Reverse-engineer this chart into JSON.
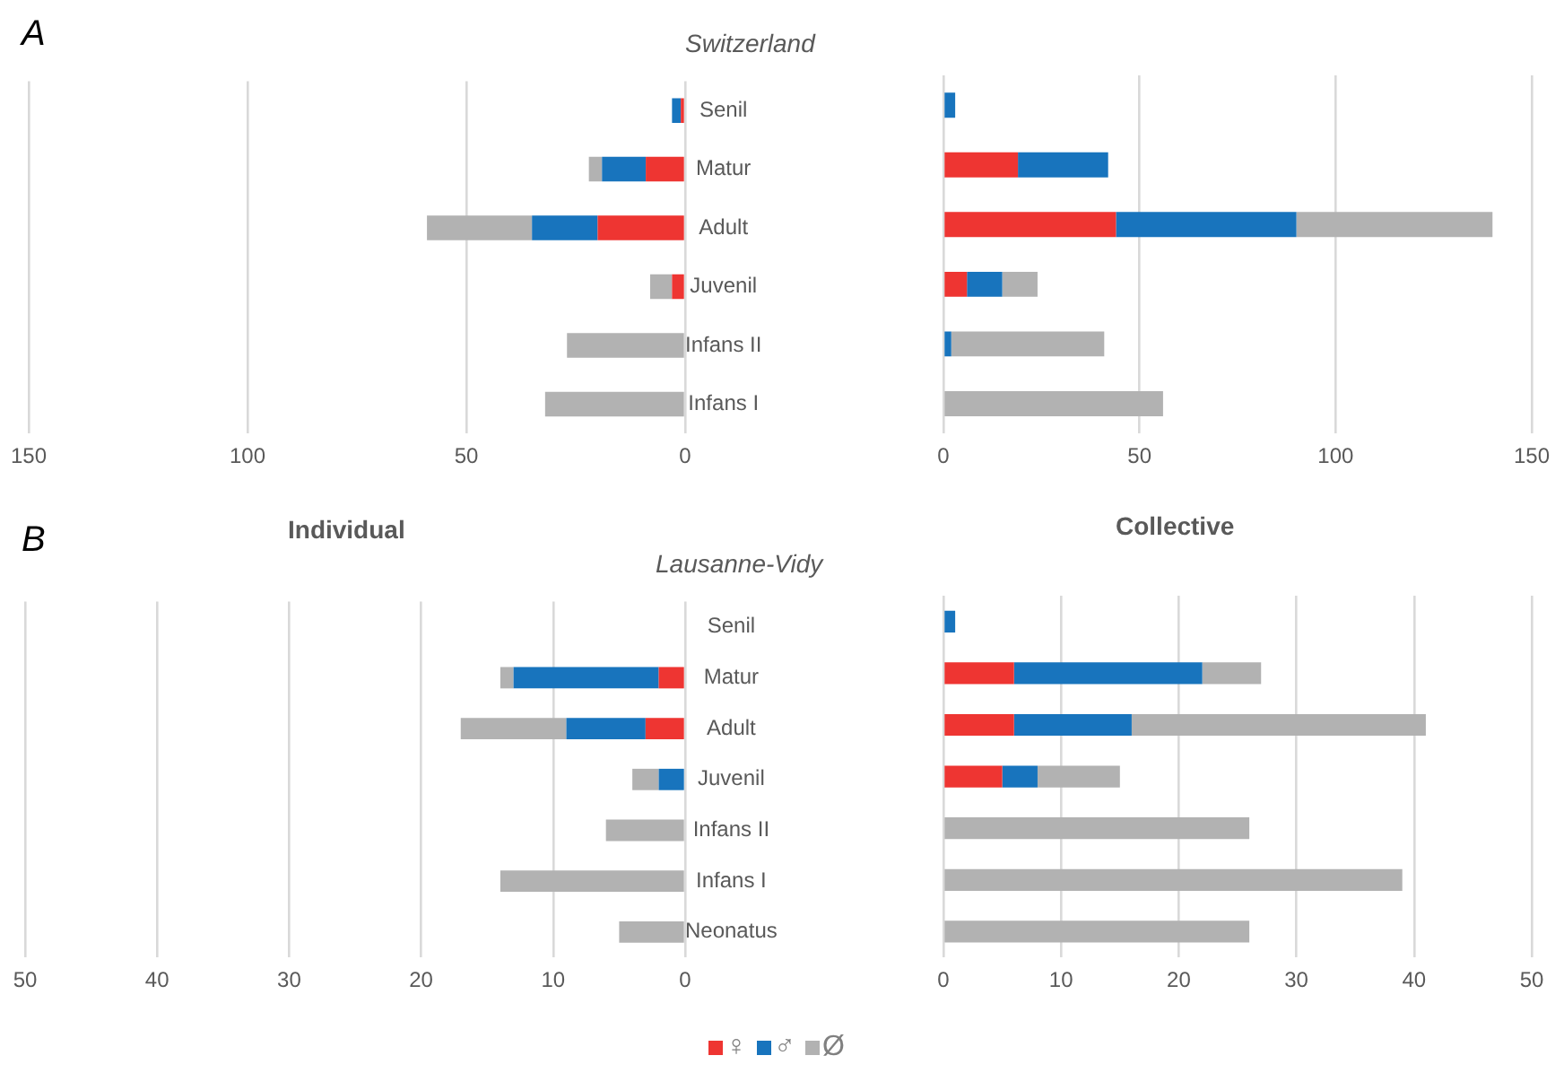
{
  "chart_data": [
    {
      "type": "bar",
      "orientation": "horizontal",
      "stacked": true,
      "title": "Switzerland",
      "annotations": [
        "A"
      ],
      "categories": [
        "Senil",
        "Matur",
        "Adult",
        "Juvenil",
        "Infans II",
        "Infans I"
      ],
      "xlim": [
        150,
        0
      ],
      "xticks": [
        150,
        100,
        50,
        0
      ],
      "grid": "x",
      "series": [
        {
          "color": "#ee3532",
          "values": [
            1,
            9,
            20,
            3,
            null,
            null
          ]
        },
        {
          "color": "#1874bd",
          "values": [
            2,
            10,
            15,
            null,
            null,
            null
          ]
        },
        {
          "color": "#b2b2b2",
          "values": [
            null,
            3,
            24,
            5,
            27,
            32
          ]
        }
      ]
    },
    {
      "type": "bar",
      "orientation": "horizontal",
      "stacked": true,
      "tick_labels": "x",
      "categories": [
        null,
        null,
        null,
        null,
        null,
        null
      ],
      "xlim": [
        0,
        150
      ],
      "xticks": [
        0,
        50,
        100,
        150
      ],
      "grid": "x",
      "series": [
        {
          "color": "#ee3532",
          "values": [
            null,
            19,
            44,
            6,
            null,
            null
          ]
        },
        {
          "color": "#1874bd",
          "values": [
            3,
            23,
            46,
            9,
            2,
            null
          ]
        },
        {
          "color": "#b2b2b2",
          "values": [
            null,
            null,
            50,
            9,
            39,
            56
          ]
        }
      ]
    },
    {
      "type": "bar",
      "orientation": "horizontal",
      "stacked": true,
      "title": "Individual",
      "subtitle": "Lausanne-Vidy",
      "annotations": [
        "B"
      ],
      "categories": [
        "Senil",
        "Matur",
        "Adult",
        "Juvenil",
        "Infans II",
        "Infans I",
        "Neonatus"
      ],
      "xlim": [
        50,
        0
      ],
      "xticks": [
        50,
        40,
        30,
        20,
        10,
        0
      ],
      "grid": "x",
      "series": [
        {
          "color": "#ee3532",
          "values": [
            null,
            2,
            3,
            null,
            null,
            null,
            null
          ]
        },
        {
          "color": "#1874bd",
          "values": [
            null,
            11,
            6,
            2,
            null,
            null,
            null
          ]
        },
        {
          "color": "#b2b2b2",
          "values": [
            null,
            1,
            8,
            2,
            6,
            14,
            5
          ]
        }
      ]
    },
    {
      "type": "bar",
      "orientation": "horizontal",
      "stacked": true,
      "title": "Collective",
      "tick_labels": "x",
      "legend": "bottom",
      "categories": [
        null,
        null,
        null,
        null,
        null,
        null,
        null
      ],
      "xlim": [
        0,
        50
      ],
      "xticks": [
        0,
        10,
        20,
        30,
        40,
        50
      ],
      "grid": "x",
      "series": [
        {
          "name": "♀",
          "color": "#ee3532",
          "values": [
            null,
            6,
            6,
            5,
            null,
            null,
            null
          ]
        },
        {
          "name": "♂",
          "color": "#1874bd",
          "values": [
            1,
            16,
            10,
            3,
            null,
            null,
            null
          ]
        },
        {
          "name": "Ø",
          "color": "#b2b2b2",
          "values": [
            null,
            5,
            25,
            7,
            26,
            39,
            26
          ]
        }
      ]
    }
  ]
}
